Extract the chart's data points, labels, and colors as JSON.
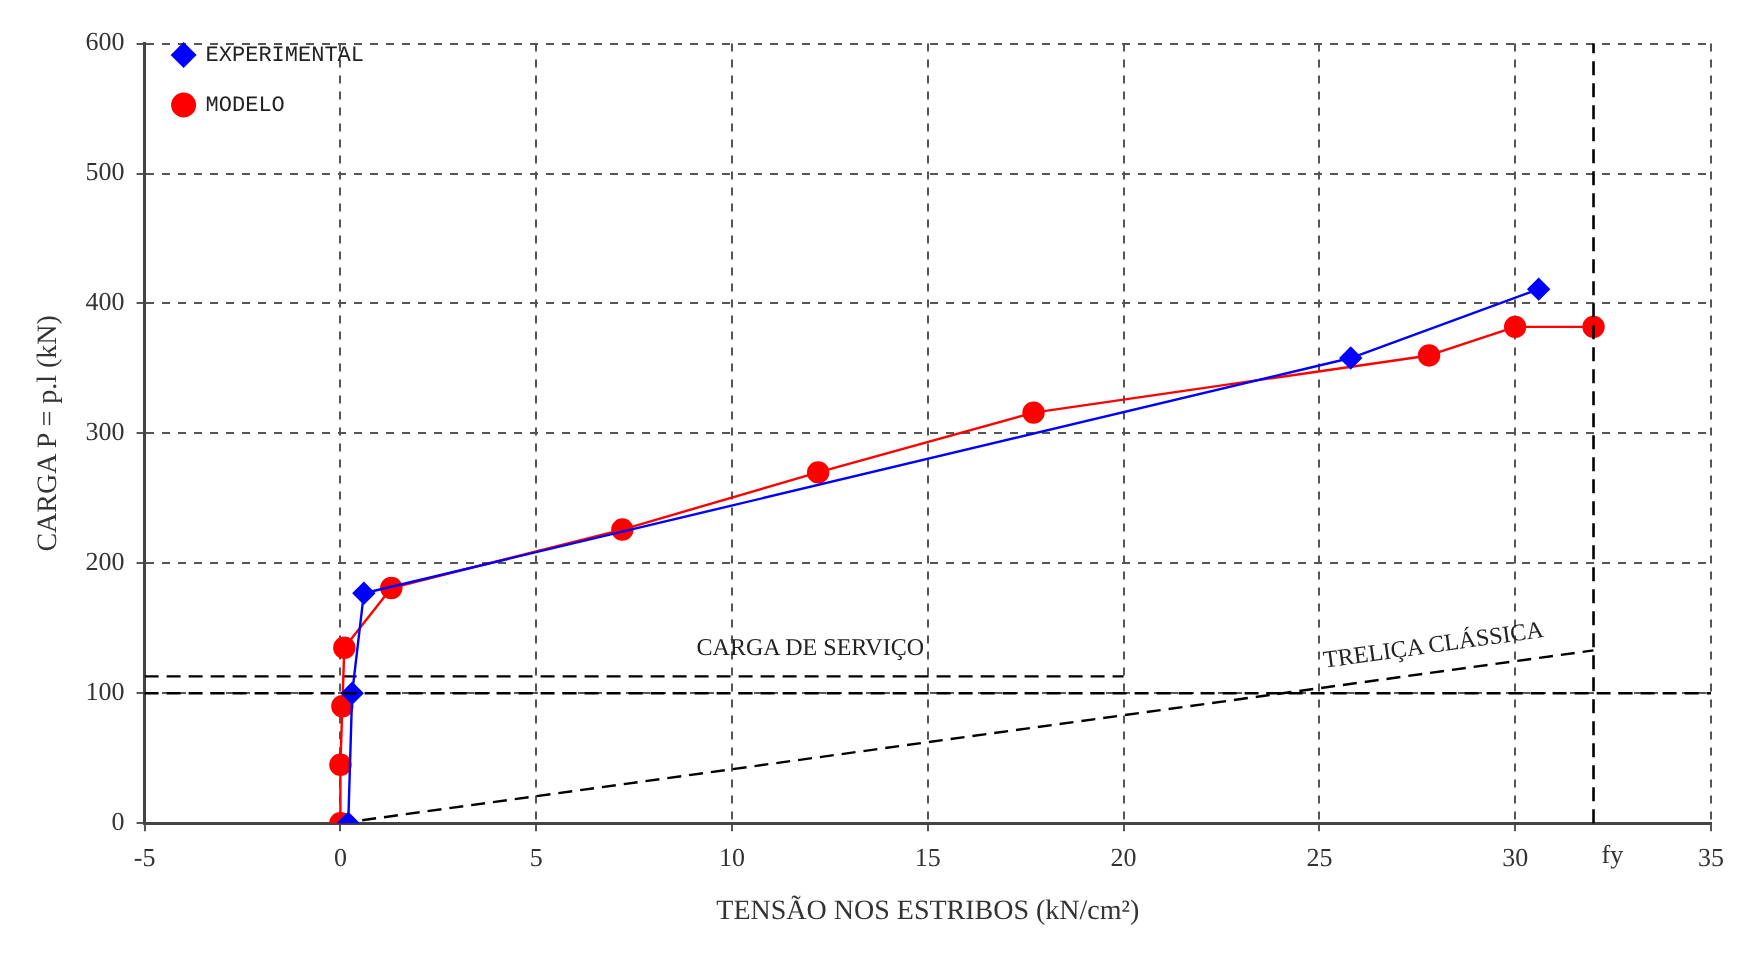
{
  "chart_data": {
    "type": "line",
    "xlabel": "TENSÃO NOS ESTRIBOS (kN/cm²)",
    "ylabel": "CARGA P = p.l (kN)",
    "xlim": [
      -5,
      35
    ],
    "xticks": [
      -5,
      0,
      5,
      10,
      15,
      20,
      25,
      30,
      35
    ],
    "ylim": [
      0,
      600
    ],
    "yticks": [
      0,
      100,
      200,
      300,
      400,
      500,
      600
    ],
    "grid": true,
    "legend": "top left",
    "series": [
      {
        "name": "EXPERIMENTAL",
        "color": "#0000ff",
        "type": "line",
        "marker": "diamond",
        "x": [
          0.2,
          0.3,
          0.6,
          25.8,
          30.6
        ],
        "values": [
          0,
          100,
          177,
          358,
          411
        ]
      },
      {
        "name": "MODELO",
        "color": "#ff0000",
        "marker": "circle",
        "x": [
          0,
          0,
          0.05,
          0.1,
          1.3,
          7.2,
          12.2,
          17.7,
          27.8,
          30,
          32
        ],
        "values": [
          0,
          45,
          90,
          135,
          181,
          226,
          270,
          316,
          360,
          382,
          382
        ]
      },
      {
        "color": "#000000",
        "marker": "none",
        "line_style": "dashed",
        "x": [
          -5,
          20
        ],
        "values": [
          113,
          113
        ]
      },
      {
        "color": "#000000",
        "marker": "none",
        "line_style": "dashed",
        "x": [
          0,
          32
        ],
        "values": [
          0,
          133
        ]
      }
    ],
    "ref_lines": [
      {
        "axis": "y",
        "value": 100,
        "line_style": "dashed",
        "color": "#000000"
      },
      {
        "axis": "x",
        "value": 32,
        "label": "fy",
        "line_style": "dashed",
        "color": "#000000"
      }
    ],
    "annotations": [
      {
        "text": "CARGA DE SERVIÇO",
        "x": 12,
        "y": 116
      },
      {
        "text": "TRELIÇA CLÁSSICA",
        "x": 28,
        "y": 118
      }
    ]
  }
}
